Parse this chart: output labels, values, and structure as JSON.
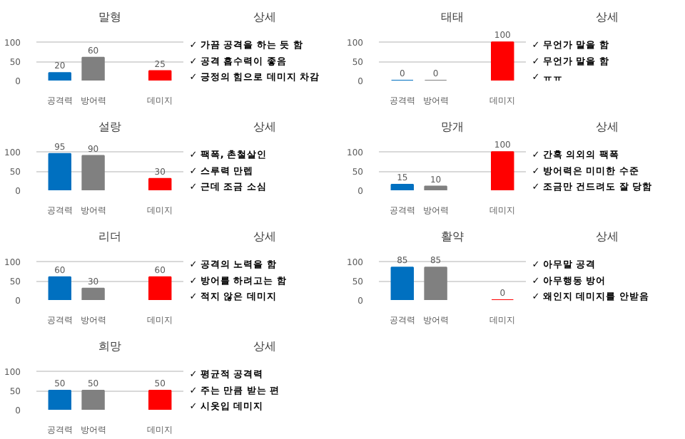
{
  "chart_data": [
    {
      "type": "bar",
      "title": "말형",
      "categories": [
        "공격력",
        "방어력",
        null,
        "데미지"
      ],
      "values": [
        20,
        60,
        null,
        25
      ],
      "colors": [
        "#0070c0",
        "#808080",
        "#808080",
        "#ff0000"
      ],
      "ylim": [
        0,
        100
      ],
      "yticks": [
        0,
        50,
        100
      ],
      "grid": "y",
      "data_labels": true
    },
    {
      "type": "other",
      "title": "상세",
      "annotations": [
        "✓ 가끔 공격을 하는 듯 함",
        "✓ 공격 흡수력이 좋음",
        "✓ 긍정의 힘으로 데미지 차감"
      ]
    },
    {
      "type": "bar",
      "title": "태태",
      "categories": [
        "공격력",
        "방어력",
        null,
        "데미지"
      ],
      "values": [
        0,
        0,
        null,
        100
      ],
      "colors": [
        "#0070c0",
        "#808080",
        "#808080",
        "#ff0000"
      ],
      "ylim": [
        0,
        100
      ],
      "yticks": [
        0,
        50,
        100
      ],
      "grid": "y",
      "data_labels": true
    },
    {
      "type": "other",
      "title": "상세",
      "annotations": [
        "✓ 무언가 말을 함",
        "✓ 무언가 말을 함",
        "✓ ㅠㅠ"
      ]
    },
    {
      "type": "bar",
      "title": "설랑",
      "categories": [
        "공격력",
        "방어력",
        null,
        "데미지"
      ],
      "values": [
        95,
        90,
        null,
        30
      ],
      "colors": [
        "#0070c0",
        "#808080",
        "#808080",
        "#ff0000"
      ],
      "ylim": [
        0,
        100
      ],
      "yticks": [
        0,
        50,
        100
      ],
      "grid": "y",
      "data_labels": true
    },
    {
      "type": "other",
      "title": "상세",
      "annotations": [
        "✓ 팩폭, 촌철살인",
        "✓ 스루력 만렙",
        "✓ 근데 조금 소심"
      ]
    },
    {
      "type": "bar",
      "title": "망개",
      "categories": [
        "공격력",
        "방어력",
        null,
        "데미지"
      ],
      "values": [
        15,
        10,
        null,
        100
      ],
      "colors": [
        "#0070c0",
        "#808080",
        "#808080",
        "#ff0000"
      ],
      "ylim": [
        0,
        100
      ],
      "yticks": [
        0,
        50,
        100
      ],
      "grid": "y",
      "data_labels": true
    },
    {
      "type": "other",
      "title": "상세",
      "annotations": [
        "✓ 간혹 의외의 팩폭",
        "✓ 방어력은 미미한 수준",
        "✓ 조금만 건드려도 잘 당함"
      ]
    },
    {
      "type": "bar",
      "title": "리더",
      "categories": [
        "공격력",
        "방어력",
        null,
        "데미지"
      ],
      "values": [
        60,
        30,
        null,
        60
      ],
      "colors": [
        "#0070c0",
        "#808080",
        "#808080",
        "#ff0000"
      ],
      "ylim": [
        0,
        100
      ],
      "yticks": [
        0,
        50,
        100
      ],
      "grid": "y",
      "data_labels": true
    },
    {
      "type": "other",
      "title": "상세",
      "annotations": [
        "✓ 공격의 노력을 함",
        "✓ 방어를 하려고는 함",
        "✓ 적지 않은 데미지"
      ]
    },
    {
      "type": "bar",
      "title": "활약",
      "categories": [
        "공격력",
        "방어력",
        null,
        "데미지"
      ],
      "values": [
        85,
        85,
        null,
        0
      ],
      "colors": [
        "#0070c0",
        "#808080",
        "#808080",
        "#ff0000"
      ],
      "ylim": [
        0,
        100
      ],
      "yticks": [
        0,
        50,
        100
      ],
      "grid": "y",
      "data_labels": true
    },
    {
      "type": "other",
      "title": "상세",
      "annotations": [
        "✓ 아무말 공격",
        "✓ 아무행동 방어",
        "✓ 왜인지 데미지를 안받음"
      ]
    },
    {
      "type": "bar",
      "title": "희망",
      "categories": [
        "공격력",
        "방어력",
        null,
        "데미지"
      ],
      "values": [
        50,
        50,
        null,
        50
      ],
      "colors": [
        "#0070c0",
        "#808080",
        "#808080",
        "#ff0000"
      ],
      "ylim": [
        0,
        100
      ],
      "yticks": [
        0,
        50,
        100
      ],
      "grid": "y",
      "data_labels": true
    },
    {
      "type": "other",
      "title": "상세",
      "annotations": [
        "✓ 평균적 공격력",
        "✓ 주는 만큼 받는 편",
        "✓ 시옷입 데미지"
      ]
    }
  ]
}
